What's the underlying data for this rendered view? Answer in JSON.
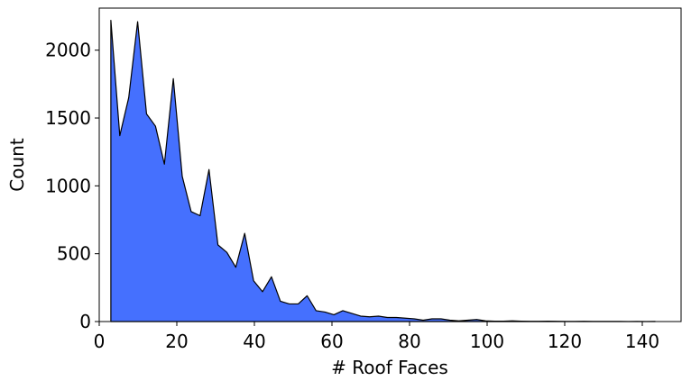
{
  "chart_data": {
    "type": "area",
    "xlabel": "# Roof Faces",
    "ylabel": "Count",
    "color": "#4570fe",
    "x": [
      3,
      5.3,
      7.6,
      9.9,
      12.2,
      14.5,
      16.8,
      19.1,
      21.4,
      23.7,
      26,
      28.3,
      30.6,
      32.9,
      35.2,
      37.5,
      39.8,
      42.1,
      44.4,
      46.7,
      49,
      51.3,
      53.6,
      55.9,
      58.2,
      60.5,
      62.8,
      65.1,
      67.4,
      69.7,
      72,
      74.3,
      76.6,
      78.9,
      81.2,
      83.5,
      85.8,
      88.1,
      90.4,
      92.7,
      95,
      97.3,
      99.6,
      101.9,
      104.2,
      106.5,
      108.8,
      111.1,
      113.4,
      115.7,
      118,
      120.3,
      122.6,
      124.9,
      127.2,
      129.5,
      131.8,
      134.1,
      136.4,
      138.7,
      141,
      143.3
    ],
    "values": [
      2220,
      1370,
      1650,
      2210,
      1530,
      1440,
      1160,
      1790,
      1070,
      810,
      780,
      1120,
      565,
      510,
      400,
      650,
      300,
      220,
      330,
      150,
      130,
      130,
      190,
      80,
      70,
      50,
      80,
      60,
      40,
      35,
      40,
      30,
      30,
      25,
      20,
      10,
      20,
      20,
      10,
      5,
      10,
      15,
      5,
      3,
      3,
      5,
      3,
      2,
      2,
      3,
      2,
      1,
      1,
      2,
      1,
      1,
      1,
      1,
      0,
      1,
      0,
      1
    ],
    "xlim": [
      0,
      150
    ],
    "xticks": [
      0,
      20,
      40,
      60,
      80,
      100,
      120,
      140
    ],
    "ylim": [
      0,
      2310
    ],
    "yticks": [
      0,
      500,
      1000,
      1500,
      2000
    ]
  }
}
